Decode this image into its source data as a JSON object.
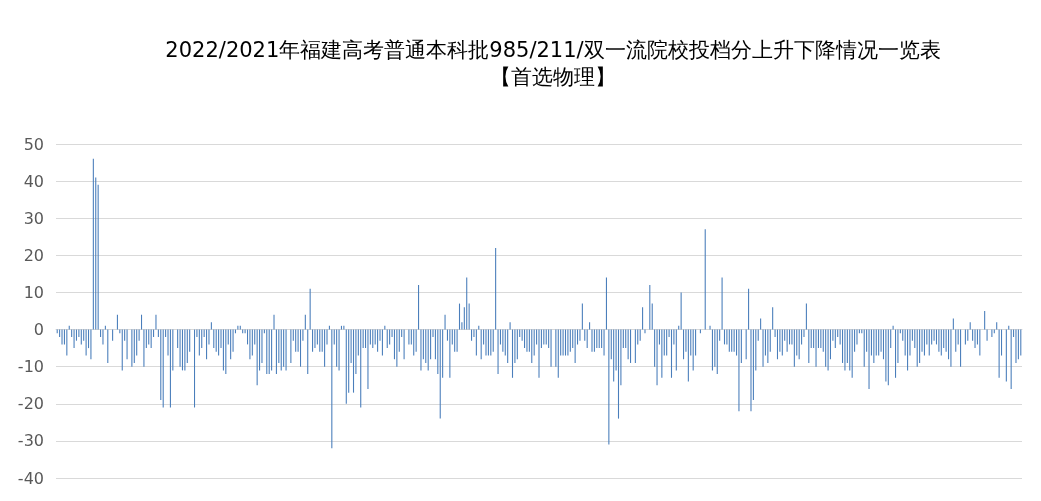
{
  "chart_data": {
    "type": "bar",
    "title": "2022/2021年福建高考普通本科批985/211/双一流院校投档分上升下降情况一览表",
    "subtitle": "【首选物理】",
    "categories": [
      null,
      null,
      null,
      null,
      null,
      null,
      null,
      null,
      null,
      null,
      null,
      null,
      null,
      null,
      null,
      null,
      null,
      null,
      null,
      null,
      null,
      null,
      null,
      null,
      null,
      null,
      null,
      null,
      null,
      null,
      null,
      null,
      null,
      null,
      null,
      null,
      null,
      null,
      null,
      null,
      null,
      null,
      null,
      null,
      null,
      null,
      null,
      null,
      null,
      null,
      null,
      null,
      null,
      null,
      null,
      null,
      null,
      null,
      null,
      null,
      null,
      null,
      null,
      null,
      null,
      null,
      null,
      null,
      null,
      null,
      null,
      null,
      null,
      null,
      null,
      null,
      null,
      null,
      null,
      null,
      null,
      null,
      null,
      null,
      null,
      null,
      null,
      null,
      null,
      null,
      null,
      null,
      null,
      null,
      null,
      null,
      null,
      null,
      null,
      null,
      null,
      null,
      null,
      null,
      null,
      null,
      null,
      null,
      null,
      null,
      null,
      null,
      null,
      null,
      null,
      null,
      null,
      null,
      null,
      null,
      null,
      null,
      null,
      null,
      null,
      null,
      null,
      null,
      null,
      null,
      null,
      null,
      null,
      null,
      null,
      null,
      null,
      null,
      null,
      null,
      null,
      null,
      null,
      null,
      null,
      null,
      null,
      null,
      null,
      null,
      null,
      null,
      null,
      null,
      null,
      null,
      null,
      null,
      null,
      null,
      null,
      null,
      null,
      null,
      null,
      null,
      null,
      null,
      null,
      null,
      null,
      null,
      null,
      null,
      null,
      null,
      null,
      null,
      null,
      null,
      null,
      null,
      null,
      null,
      null,
      null,
      null,
      null,
      null,
      null,
      null,
      null,
      null,
      null,
      null,
      null,
      null,
      null,
      null,
      null,
      null,
      null,
      null,
      null,
      null,
      null,
      null,
      null,
      null,
      null,
      null,
      null,
      null,
      null,
      null,
      null,
      null,
      null,
      null,
      null,
      null,
      null,
      null,
      null,
      null,
      null,
      null,
      null,
      null,
      null,
      null,
      null,
      null,
      null,
      null,
      null,
      null,
      null,
      null,
      null,
      null,
      null,
      null,
      null,
      null,
      null,
      null,
      null,
      null,
      null,
      null,
      null,
      null,
      null,
      null,
      null,
      null,
      null,
      null,
      null,
      null,
      null,
      null,
      null,
      null,
      null,
      null,
      null,
      null,
      null,
      null,
      null,
      null,
      null,
      null,
      null,
      null,
      null,
      null,
      null,
      null,
      null,
      null,
      null,
      null,
      null,
      null,
      null,
      null,
      null,
      null,
      null,
      null,
      null,
      null,
      null,
      null,
      null,
      null,
      null,
      null,
      null,
      null,
      null,
      null,
      null,
      null,
      null,
      null,
      null,
      null,
      null,
      null,
      null,
      null,
      null,
      null,
      null,
      null,
      null,
      null,
      null,
      null,
      null,
      null,
      null,
      null,
      null,
      null,
      null,
      null,
      null,
      null,
      null,
      null,
      null,
      null,
      null,
      null,
      null,
      null,
      null,
      null,
      null,
      null,
      null,
      null,
      null,
      null,
      null,
      null,
      null,
      null,
      null,
      null,
      null,
      null,
      null,
      null,
      null,
      null,
      null,
      null,
      null,
      null,
      null,
      null,
      null,
      null,
      null,
      null,
      null,
      null,
      null,
      null,
      null,
      null,
      null,
      null,
      null,
      null,
      null,
      null,
      null,
      null,
      null,
      null,
      null,
      null,
      null,
      null,
      null,
      null,
      null,
      null,
      null,
      null,
      null,
      null,
      null,
      null
    ],
    "values": [
      -1,
      -2,
      -4,
      -4,
      -7,
      1,
      -2,
      -5,
      -3,
      -2,
      -4,
      -3,
      -7,
      -5,
      -8,
      46,
      41,
      39,
      -2,
      -4,
      1,
      -9,
      0,
      -3,
      0,
      4,
      -1,
      -11,
      -3,
      -8,
      0,
      -10,
      -9,
      -7,
      -3,
      4,
      -10,
      -5,
      -4,
      -5,
      -2,
      4,
      -2,
      -19,
      -21,
      -2,
      -7,
      -21,
      -11,
      0,
      -5,
      -10,
      -11,
      -11,
      -9,
      -6,
      0,
      -21,
      -2,
      -7,
      -5,
      -2,
      -8,
      -4,
      2,
      -5,
      -6,
      -7,
      -5,
      -11,
      -12,
      -4,
      -8,
      -6,
      -1,
      1,
      1,
      -1,
      -1,
      -4,
      -8,
      -7,
      -4,
      -15,
      -11,
      -9,
      -1,
      -12,
      -12,
      -11,
      4,
      -12,
      -9,
      -11,
      -10,
      -11,
      0,
      -9,
      -3,
      -6,
      -6,
      -10,
      -3,
      4,
      -12,
      11,
      -6,
      -5,
      -4,
      -6,
      -6,
      -10,
      -4,
      1,
      -32,
      -4,
      -10,
      -11,
      1,
      1,
      -20,
      -17,
      -9,
      -17,
      -12,
      -7,
      -21,
      -5,
      -5,
      -16,
      -4,
      -5,
      -4,
      -6,
      -3,
      -7,
      1,
      -5,
      -4,
      -2,
      -8,
      -10,
      -6,
      -2,
      -8,
      0,
      -4,
      -4,
      -7,
      -6,
      12,
      -11,
      -8,
      -9,
      -11,
      -8,
      -2,
      -8,
      -12,
      -24,
      -13,
      4,
      -3,
      -13,
      -4,
      -6,
      -6,
      7,
      2,
      6,
      14,
      7,
      -3,
      -2,
      -7,
      1,
      -8,
      -4,
      -7,
      -7,
      -7,
      -6,
      22,
      -12,
      -4,
      -6,
      -7,
      -9,
      2,
      -13,
      -9,
      -8,
      -2,
      -3,
      -5,
      -6,
      -6,
      -9,
      -7,
      -4,
      -13,
      -5,
      -4,
      -4,
      -5,
      -10,
      0,
      -10,
      -13,
      -7,
      -7,
      -7,
      -7,
      -6,
      -5,
      -9,
      -4,
      -3,
      7,
      -3,
      -5,
      2,
      -6,
      -6,
      -5,
      -5,
      -5,
      -7,
      14,
      -31,
      -8,
      -14,
      -11,
      -24,
      -15,
      -5,
      -5,
      -8,
      -9,
      0,
      -9,
      -4,
      -3,
      6,
      -1,
      0,
      12,
      7,
      -10,
      -15,
      -4,
      -13,
      -7,
      -7,
      -2,
      -13,
      -4,
      -11,
      1,
      10,
      -8,
      -6,
      -14,
      -7,
      -11,
      -7,
      0,
      -1,
      0,
      27,
      0,
      1,
      -11,
      -10,
      -12,
      -3,
      14,
      -4,
      -4,
      -6,
      -6,
      -6,
      -7,
      -22,
      -9,
      0,
      -8,
      11,
      -22,
      -19,
      -11,
      -3,
      3,
      -10,
      -7,
      -9,
      -6,
      6,
      -2,
      -8,
      -6,
      -7,
      -3,
      -6,
      -4,
      -4,
      -10,
      -7,
      -8,
      -4,
      -2,
      7,
      -9,
      -5,
      -5,
      -10,
      -5,
      -5,
      -6,
      -10,
      -11,
      -8,
      -3,
      -5,
      -2,
      -4,
      -9,
      -11,
      -9,
      -11,
      -13,
      -6,
      -4,
      -1,
      -1,
      -10,
      -6,
      -16,
      -7,
      -9,
      -7,
      -7,
      -6,
      -8,
      -14,
      -15,
      -5,
      1,
      -13,
      -9,
      -1,
      -3,
      -7,
      -11,
      -7,
      -3,
      -5,
      -10,
      -9,
      -6,
      -7,
      -4,
      -7,
      -4,
      -3,
      -4,
      -6,
      -7,
      -5,
      -6,
      -8,
      -10,
      3,
      -6,
      -4,
      -10,
      0,
      -4,
      -3,
      2,
      -3,
      -5,
      -4,
      -7,
      0,
      5,
      -3,
      0,
      -2,
      -1,
      2,
      -13,
      -7,
      0,
      -14,
      1,
      -16,
      -2,
      -9,
      -8,
      -7
    ],
    "color": "#4a7ebb",
    "ylim": [
      -40,
      50
    ],
    "yticks": [
      -40,
      -30,
      -20,
      -10,
      0,
      10,
      20,
      30,
      40,
      50
    ],
    "grid": "y",
    "tick_labels": "y"
  }
}
